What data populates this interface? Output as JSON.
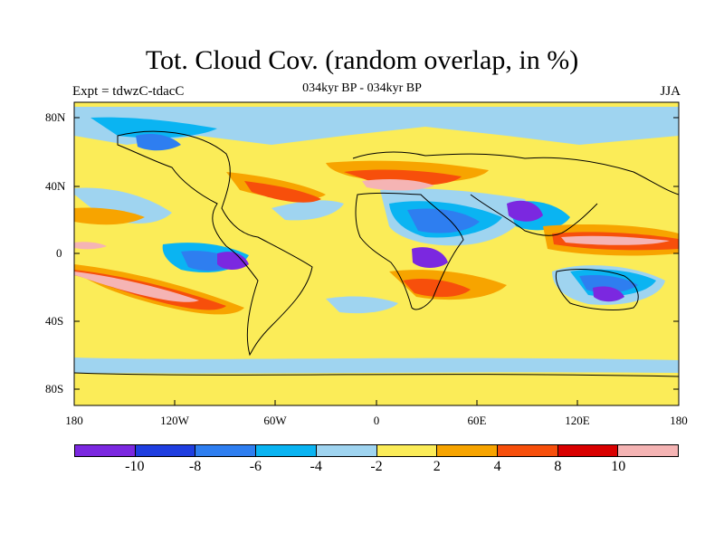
{
  "title": "Tot. Cloud Cov. (random overlap, in %)",
  "subtitle": "034kyr BP - 034kyr BP",
  "left_label": "Expt = tdwzC-tdacC",
  "right_label": "JJA",
  "lat_ticks": [
    "80N",
    "40N",
    "0",
    "40S",
    "80S"
  ],
  "lon_ticks": [
    "180",
    "120W",
    "60W",
    "0",
    "60E",
    "120E",
    "180"
  ],
  "colorbar": {
    "colors": [
      "#7b28e0",
      "#1f3ee0",
      "#2e7ef0",
      "#0ab4f2",
      "#9fd4f0",
      "#fbec58",
      "#f7a400",
      "#f74f0b",
      "#d90000",
      "#f5b4b4"
    ],
    "labels": [
      "-10",
      "-8",
      "-6",
      "-4",
      "-2",
      "2",
      "4",
      "8",
      "10"
    ]
  },
  "map": {
    "projection": "cylindrical-equidistant",
    "background_color": "#fbec58",
    "lat_range": [
      -90,
      90
    ],
    "lon_range": [
      -180,
      180
    ]
  }
}
